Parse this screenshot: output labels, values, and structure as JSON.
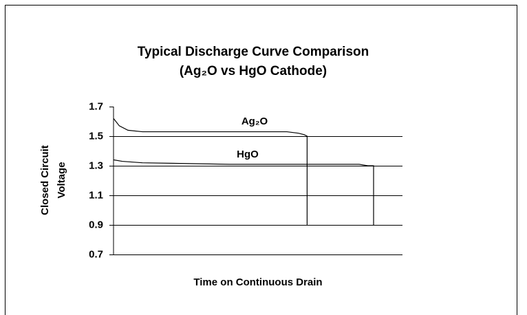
{
  "chart_data": {
    "type": "line",
    "title": [
      "Typical Discharge Curve Comparison",
      "(Ag₂O vs HgO Cathode)"
    ],
    "y_label": [
      "Closed Circuit",
      "Voltage"
    ],
    "x_label": "Time on Continuous Drain",
    "xlim": [
      0,
      100
    ],
    "ylim": [
      0.7,
      1.7
    ],
    "yticks": [
      {
        "value": 0.7,
        "label": "0.7"
      },
      {
        "value": 0.9,
        "label": "0.9"
      },
      {
        "value": 1.1,
        "label": "1.1"
      },
      {
        "value": 1.3,
        "label": "1.3"
      },
      {
        "value": 1.5,
        "label": "1.5"
      },
      {
        "value": 1.7,
        "label": "1.7"
      }
    ],
    "grid": true,
    "series": [
      {
        "name": "Ag₂O",
        "color": "#000000",
        "x": [
          0,
          2,
          5,
          10,
          30,
          50,
          60,
          64,
          66,
          67,
          67
        ],
        "values": [
          1.62,
          1.57,
          1.54,
          1.53,
          1.53,
          1.53,
          1.53,
          1.52,
          1.51,
          1.5,
          0.9
        ]
      },
      {
        "name": "HgO",
        "color": "#000000",
        "x": [
          0,
          3,
          10,
          40,
          70,
          85,
          88,
          90,
          90
        ],
        "values": [
          1.34,
          1.33,
          1.32,
          1.31,
          1.31,
          1.31,
          1.3,
          1.3,
          0.9
        ]
      }
    ]
  }
}
